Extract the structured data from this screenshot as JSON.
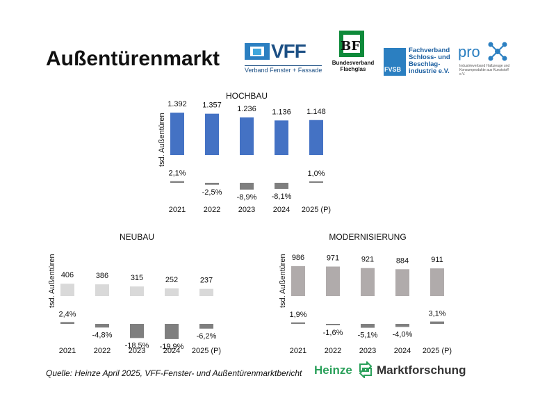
{
  "header": {
    "title": "Außentürenmarkt"
  },
  "logos": {
    "vff": {
      "text": "VFF",
      "sub": "Verband Fenster + Fassade"
    },
    "bf": {
      "letters": "BF",
      "sub_line1": "Bundesverband",
      "sub_line2": "Flachglas"
    },
    "fvsb": {
      "label": "FVSB",
      "line1": "Fachverband",
      "line2": "Schloss- und",
      "line3": "Beschlag-",
      "line4": "industrie e.V."
    },
    "prok": {
      "text": "pro",
      "sub": "Industrieverband Halbzeuge und Konsumprodukte aus Kunststoff e.V."
    }
  },
  "footer": {
    "source": "Quelle: Heinze April 2025, VFF-Fenster- und Außentürenmarktbericht",
    "heinze_a": "Heinze",
    "heinze_b": "Marktforschung"
  },
  "colors": {
    "hochbau": "#4472c4",
    "neubau": "#d9d9d9",
    "modernisierung": "#b0abab",
    "change": "#7f7f7f"
  },
  "chart_data": [
    {
      "type": "bar",
      "title": "HOCHBAU",
      "ylabel": "tsd. Außentüren",
      "categories": [
        "2021",
        "2022",
        "2023",
        "2024",
        "2025 (P)"
      ],
      "values": [
        1392,
        1357,
        1236,
        1136,
        1148
      ],
      "value_labels": [
        "1.392",
        "1.357",
        "1.236",
        "1.136",
        "1.148"
      ],
      "change": [
        2.1,
        -2.5,
        -8.9,
        -8.1,
        1.0
      ],
      "change_labels": [
        "2,1%",
        "-2,5%",
        "-8,9%",
        "-8,1%",
        "1,0%"
      ],
      "ylim": [
        0,
        1600
      ]
    },
    {
      "type": "bar",
      "title": "NEUBAU",
      "ylabel": "tsd. Außentüren",
      "categories": [
        "2021",
        "2022",
        "2023",
        "2024",
        "2025 (P)"
      ],
      "values": [
        406,
        386,
        315,
        252,
        237
      ],
      "value_labels": [
        "406",
        "386",
        "315",
        "252",
        "237"
      ],
      "change": [
        2.4,
        -4.8,
        -18.5,
        -19.9,
        -6.2
      ],
      "change_labels": [
        "2,4%",
        "-4,8%",
        "-18,5%",
        "-19,9%",
        "-6,2%"
      ],
      "ylim": [
        0,
        1600
      ]
    },
    {
      "type": "bar",
      "title": "MODERNISIERUNG",
      "ylabel": "tsd. Außentüren",
      "categories": [
        "2021",
        "2022",
        "2023",
        "2024",
        "2025 (P)"
      ],
      "values": [
        986,
        971,
        921,
        884,
        911
      ],
      "value_labels": [
        "986",
        "971",
        "921",
        "884",
        "911"
      ],
      "change": [
        1.9,
        -1.6,
        -5.1,
        -4.0,
        3.1
      ],
      "change_labels": [
        "1,9%",
        "-1,6%",
        "-5,1%",
        "-4,0%",
        "3,1%"
      ],
      "ylim": [
        0,
        1600
      ]
    }
  ]
}
